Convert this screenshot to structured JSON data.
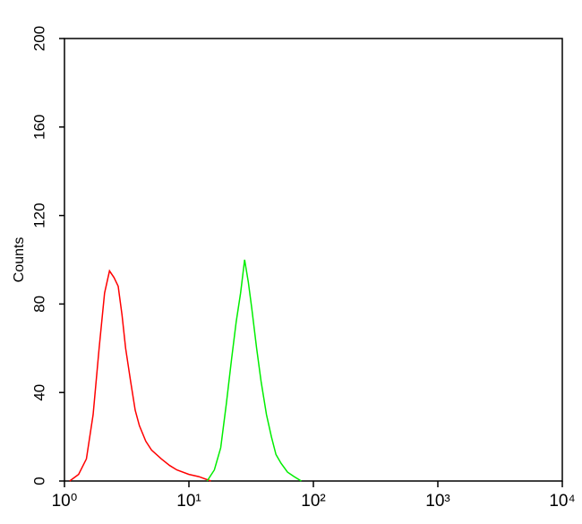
{
  "chart_data": {
    "type": "line",
    "ylabel": "Counts",
    "xscale": "log",
    "xlim": [
      1,
      10000
    ],
    "xticks": [
      {
        "value": 1,
        "label": "10⁰"
      },
      {
        "value": 10,
        "label": "10¹"
      },
      {
        "value": 100,
        "label": "10²"
      },
      {
        "value": 1000,
        "label": "10³"
      },
      {
        "value": 10000,
        "label": "10⁴"
      }
    ],
    "ylim": [
      0,
      200
    ],
    "yticks": [
      0,
      40,
      80,
      120,
      160,
      200
    ],
    "series": [
      {
        "color": "#ff0000",
        "x": [
          1.1,
          1.3,
          1.5,
          1.7,
          1.9,
          2.1,
          2.3,
          2.5,
          2.7,
          2.9,
          3.1,
          3.4,
          3.7,
          4.0,
          4.5,
          5.0,
          6.0,
          7.0,
          8.0,
          10,
          12,
          15
        ],
        "values": [
          0,
          3,
          10,
          30,
          60,
          85,
          95,
          92,
          88,
          75,
          60,
          45,
          32,
          25,
          18,
          14,
          10,
          7,
          5,
          3,
          2,
          0
        ]
      },
      {
        "color": "#00ee00",
        "x": [
          14,
          16,
          18,
          20,
          22,
          24,
          26,
          28,
          30,
          32,
          35,
          38,
          42,
          46,
          50,
          55,
          62,
          70,
          80
        ],
        "values": [
          0,
          5,
          15,
          35,
          55,
          72,
          85,
          100,
          90,
          78,
          60,
          45,
          30,
          20,
          12,
          8,
          4,
          2,
          0
        ]
      }
    ]
  }
}
